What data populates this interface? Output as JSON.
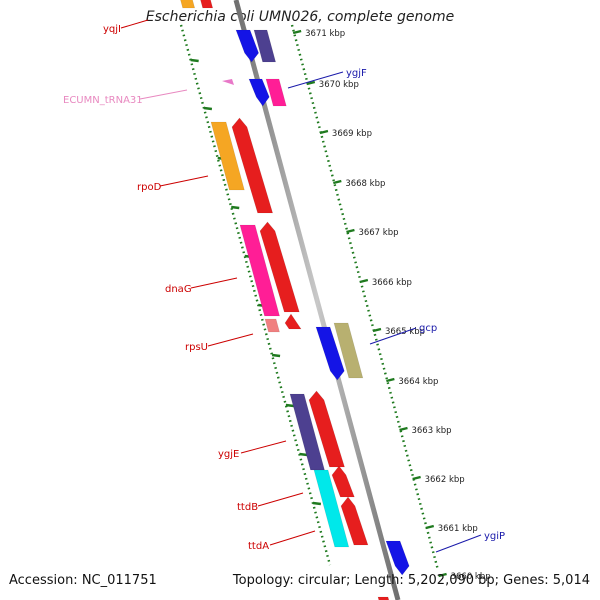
{
  "title": "Escherichia coli UMN026, complete genome",
  "accession_text": "Accession: NC_011751",
  "summary_text": "Topology: circular; Length: 5,202,090 bp; Genes: 5,014",
  "colors": {
    "forward_label": "#cc0000",
    "reverse_label": "#1a1aaa",
    "trna_label": "#e889c0",
    "tick_dots": "#1f7a1f",
    "backbone": "#888888"
  },
  "scale_ticks": [
    "3671 kbp",
    "3670 kbp",
    "3669 kbp",
    "3668 kbp",
    "3667 kbp",
    "3666 kbp",
    "3665 kbp",
    "3664 kbp",
    "3663 kbp",
    "3662 kbp",
    "3661 kbp",
    "3660 kbp"
  ],
  "gene_labels": [
    {
      "name": "yqjI",
      "strand": "forward"
    },
    {
      "name": "ygjF",
      "strand": "reverse"
    },
    {
      "name": "ECUMN_tRNA31",
      "strand": "trna"
    },
    {
      "name": "rpoD",
      "strand": "forward"
    },
    {
      "name": "dnaG",
      "strand": "forward"
    },
    {
      "name": "gcp",
      "strand": "reverse"
    },
    {
      "name": "rpsU",
      "strand": "forward"
    },
    {
      "name": "ygjE",
      "strand": "forward"
    },
    {
      "name": "ttdB",
      "strand": "forward"
    },
    {
      "name": "ttdA",
      "strand": "forward"
    },
    {
      "name": "ygiP",
      "strand": "reverse"
    }
  ]
}
